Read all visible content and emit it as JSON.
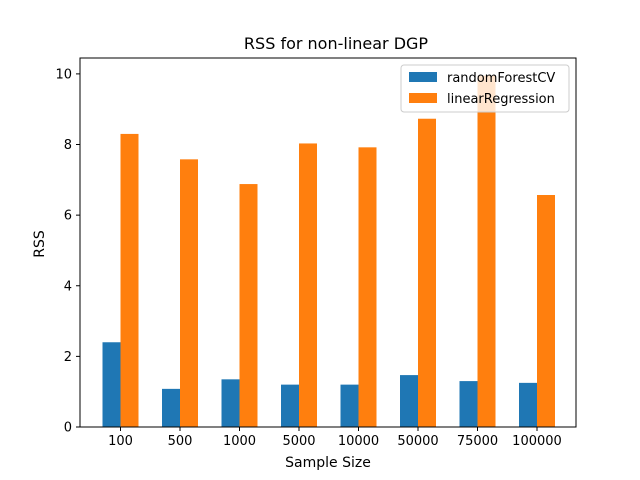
{
  "chart_data": {
    "type": "bar",
    "title": "RSS for non-linear DGP",
    "xlabel": "Sample Size",
    "ylabel": "RSS",
    "categories": [
      "100",
      "500",
      "1000",
      "5000",
      "10000",
      "50000",
      "75000",
      "100000"
    ],
    "series": [
      {
        "name": "randomForestCV",
        "color": "#1f77b4",
        "values": [
          2.4,
          1.08,
          1.35,
          1.2,
          1.2,
          1.47,
          1.3,
          1.25
        ]
      },
      {
        "name": "linearRegression",
        "color": "#ff7f0e",
        "values": [
          8.3,
          7.58,
          6.88,
          8.03,
          7.92,
          8.73,
          9.95,
          6.57
        ]
      }
    ],
    "ylim": [
      0,
      10.45
    ],
    "yticks": [
      "0",
      "2",
      "4",
      "6",
      "8",
      "10"
    ],
    "grid": false,
    "legend_position": "top-right"
  }
}
